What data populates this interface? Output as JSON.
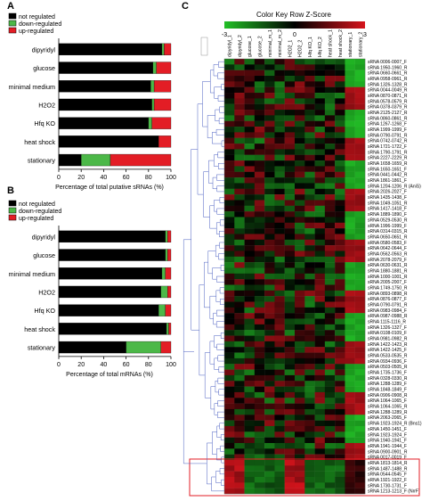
{
  "panel_labels": {
    "a": "A",
    "b": "B",
    "c": "C"
  },
  "colors": {
    "not_regulated": "#000000",
    "down_regulated": "#4cb848",
    "up_regulated": "#e31d25",
    "heat_low": "#22c026",
    "heat_mid": "#000000",
    "heat_high": "#d6141c",
    "dendrogram": "#4a5fc1",
    "highlight_box": "#e31d25"
  },
  "chart_data": [
    {
      "type": "bar",
      "orientation": "horizontal",
      "stacked": true,
      "panel": "A",
      "legend": [
        "not regulated",
        "down-regulated",
        "up-regulated"
      ],
      "legend_position": "top-left",
      "categories": [
        "dipyridyl",
        "glucose",
        "minimal medium",
        "H2O2",
        "Hfq KO",
        "heat shock",
        "stationary"
      ],
      "series": [
        {
          "name": "not regulated",
          "values": [
            92,
            84,
            82,
            83,
            80,
            89,
            20
          ]
        },
        {
          "name": "down-regulated",
          "values": [
            2,
            3,
            3,
            2,
            3,
            0,
            26
          ]
        },
        {
          "name": "up-regulated",
          "values": [
            6,
            13,
            15,
            15,
            17,
            11,
            54
          ]
        }
      ],
      "xlabel": "Percentage of  total putative sRNAs (%)",
      "xticks": [
        0,
        20,
        40,
        60,
        80,
        100
      ],
      "xlim": [
        0,
        100
      ]
    },
    {
      "type": "bar",
      "orientation": "horizontal",
      "stacked": true,
      "panel": "B",
      "legend": [
        "not regulated",
        "down-regulated",
        "up-regulated"
      ],
      "legend_position": "top-left",
      "categories": [
        "dipyridyl",
        "glucose",
        "minimal medium",
        "H2O2",
        "Hfq KO",
        "heat shock",
        "stationary"
      ],
      "series": [
        {
          "name": "not regulated",
          "values": [
            95,
            95,
            92,
            91,
            89,
            96,
            60
          ]
        },
        {
          "name": "down-regulated",
          "values": [
            2,
            2,
            3,
            6,
            6,
            2,
            31
          ]
        },
        {
          "name": "up-regulated",
          "values": [
            3,
            3,
            5,
            3,
            5,
            2,
            9
          ]
        }
      ],
      "xlabel": "Percentage of  total mRNAs (%)",
      "xticks": [
        0,
        20,
        40,
        60,
        80,
        100
      ],
      "xlim": [
        0,
        100
      ]
    },
    {
      "type": "heatmap",
      "panel": "C",
      "title": "Color Key Row Z-Score",
      "color_key_ticks": [
        "-3",
        "0",
        "3"
      ],
      "columns": [
        "dipyridyl_1",
        "dipyridyl_2",
        "glucose_1",
        "glucose_2",
        "minimal_m_1",
        "minimal_m_2",
        "H2O2_1",
        "H2O2_2",
        "Hfq KO_1",
        "Hfq KO_2",
        "heat shock_1",
        "heat shock_2",
        "stationary_1",
        "stationary_2"
      ],
      "rows": [
        "sRNA 0006-0007_F",
        "sRNA 1950-1960_R",
        "sRNA 0660-0661_R",
        "sRNA 0958-0961_R",
        "sRNA 1326-1328_R",
        "sRNA 0044-0049_R",
        "sRNA 0870-0871_R",
        "sRNA 0578-0579_R",
        "sRNA 0378-0379_R",
        "sRNA 2125-2127_R",
        "sRNA 0860-0861_R",
        "sRNA 1267-1268_F",
        "sRNA 1999-1999_F",
        "sRNA 0790-0791_R",
        "sRNA 0742-0742_R",
        "sRNA 1721-1722_F",
        "sRNA 1790-1791_R",
        "sRNA 2227-2229_R",
        "sRNA 1658-1659_R",
        "sRNA 1650-1651_F",
        "sRNA 0441-0442_R",
        "sRNA 1861-1861_F",
        "sRNA 1204-1206_R (AniS)",
        "sRNA 2026-2027_F",
        "sRNA 1435-1438_F",
        "sRNA 1049-1051_R",
        "sRNA 1417-1418_F",
        "sRNA 1889-1890_F",
        "sRNA 0529-0530_R",
        "sRNA 1996-1999_F",
        "sRNA 0314-0315_R",
        "sRNA 0650-0651_R",
        "sRNA 0580-0583_F",
        "sRNA 0642-0644_F",
        "sRNA 0562-0563_R",
        "sRNA 2078-2079_F",
        "sRNA 0630-0631_R",
        "sRNA 1880-1881_R",
        "sRNA 1000-1001_R",
        "sRNA 2005-2007_F",
        "sRNA 1749-1750_R",
        "sRNA 0893-0898_R",
        "sRNA 0876-0877_F",
        "sRNA 0790-0791_R",
        "sRNA 0983-0984_F",
        "sRNA 0987-0988_R",
        "sRNA 1115-1116_R",
        "sRNA 1326-1327_F",
        "sRNA 0108-0109_F",
        "sRNA 0981-0982_R",
        "sRNA 1422-1423_R",
        "sRNA 1422-1425_F",
        "sRNA 0533-0535_R",
        "sRNA 0934-0936_F",
        "sRNA 0503-0505_R",
        "sRNA 1735-1736_F",
        "sRNA 0328-0330_R",
        "sRNA 1288-1289_F",
        "sRNA 1848-1849_F",
        "sRNA 0906-0908_R",
        "sRNA 1064-1065_F",
        "sRNA 1064-1065_R",
        "sRNA 1288-1289_R",
        "sRNA 2063-2065_F",
        "sRNA 1923-1924_R (Bns1)",
        "sRNA 1450-1451_F",
        "sRNA 1923-1924_F",
        "sRNA 1940-1941_F",
        "sRNA 1941-1944_F",
        "sRNA 0900-0901_R",
        "sRNA 0017-0019_F",
        "sRNA 1813-1814_R",
        "sRNA 1487-1488_R",
        "sRNA 0544-0545_F",
        "sRNA 1921-1922_F",
        "sRNA 1730-1731_F",
        "sRNA 1213-1213_F (NrrF)"
      ],
      "highlighted_rows_from": 71
    }
  ]
}
